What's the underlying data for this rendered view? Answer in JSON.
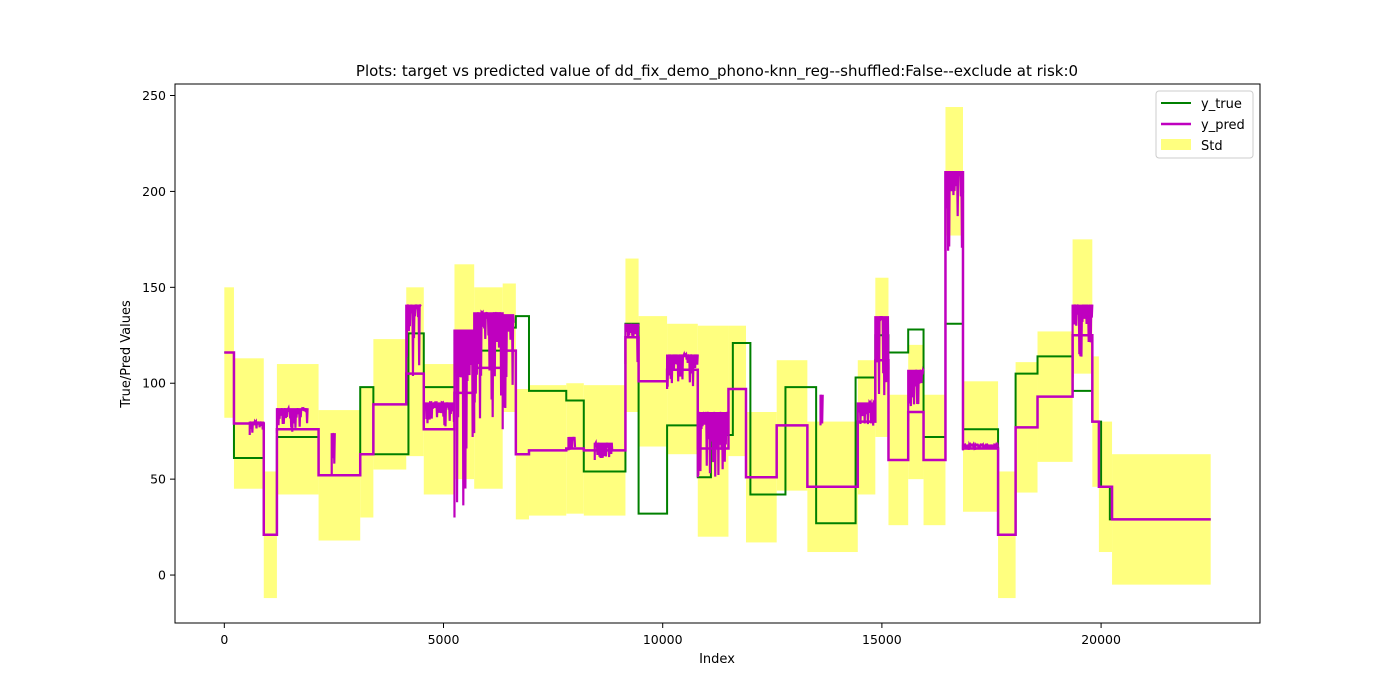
{
  "chart_data": {
    "type": "line",
    "title": "Plots: target vs predicted value of dd_fix_demo_phono-knn_reg--shuffled:False--exclude at risk:0",
    "xlabel": "Index",
    "ylabel": "True/Pred Values",
    "xlim": [
      -1125,
      23625
    ],
    "ylim": [
      -25,
      256
    ],
    "xticks": [
      0,
      5000,
      10000,
      15000,
      20000
    ],
    "yticks": [
      0,
      50,
      100,
      150,
      200,
      250
    ],
    "grid": false,
    "legend": {
      "placement": "top-right",
      "entries": [
        "y_true",
        "y_pred",
        "Std"
      ]
    },
    "colors": {
      "y_true": "#008000",
      "y_pred": "#bf00bf",
      "std": "#ffff7f"
    },
    "series": [
      {
        "name": "y_true",
        "step": [
          [
            0,
            116
          ],
          [
            220,
            61
          ],
          [
            900,
            21
          ],
          [
            1200,
            72
          ],
          [
            2150,
            52
          ],
          [
            3100,
            98
          ],
          [
            3400,
            63
          ],
          [
            4200,
            126
          ],
          [
            4550,
            98
          ],
          [
            5250,
            127
          ],
          [
            5650,
            117
          ],
          [
            6350,
            129
          ],
          [
            6650,
            135
          ],
          [
            6950,
            96
          ],
          [
            7800,
            91
          ],
          [
            8200,
            54
          ],
          [
            9150,
            131
          ],
          [
            9450,
            32
          ],
          [
            10100,
            78
          ],
          [
            10800,
            51
          ],
          [
            11100,
            73
          ],
          [
            11600,
            121
          ],
          [
            12000,
            42
          ],
          [
            12800,
            98
          ],
          [
            13500,
            27
          ],
          [
            14400,
            103
          ],
          [
            14850,
            125
          ],
          [
            15150,
            116
          ],
          [
            15600,
            128
          ],
          [
            15950,
            72
          ],
          [
            16450,
            131
          ],
          [
            16850,
            76
          ],
          [
            17650,
            21
          ],
          [
            18050,
            105
          ],
          [
            18550,
            114
          ],
          [
            19350,
            96
          ],
          [
            19800,
            80
          ],
          [
            20000,
            46
          ],
          [
            20200,
            29
          ],
          [
            22500,
            29
          ]
        ]
      },
      {
        "name": "y_pred",
        "step": [
          [
            0,
            116
          ],
          [
            220,
            79
          ],
          [
            900,
            21
          ],
          [
            1200,
            76
          ],
          [
            2150,
            52
          ],
          [
            3100,
            63
          ],
          [
            3400,
            89
          ],
          [
            4150,
            105
          ],
          [
            4550,
            76
          ],
          [
            5250,
            95
          ],
          [
            5700,
            108
          ],
          [
            6350,
            117
          ],
          [
            6650,
            63
          ],
          [
            6950,
            65
          ],
          [
            7800,
            66
          ],
          [
            8200,
            65
          ],
          [
            9150,
            124
          ],
          [
            9450,
            101
          ],
          [
            10100,
            107
          ],
          [
            10800,
            66
          ],
          [
            11500,
            97
          ],
          [
            11900,
            51
          ],
          [
            12600,
            78
          ],
          [
            13300,
            46
          ],
          [
            14450,
            80
          ],
          [
            14850,
            112
          ],
          [
            15150,
            60
          ],
          [
            15600,
            85
          ],
          [
            15950,
            60
          ],
          [
            16450,
            210
          ],
          [
            16850,
            66
          ],
          [
            17650,
            21
          ],
          [
            18050,
            77
          ],
          [
            18550,
            93
          ],
          [
            19350,
            125
          ],
          [
            19800,
            80
          ],
          [
            19950,
            46
          ],
          [
            20250,
            29
          ],
          [
            22500,
            29
          ]
        ]
      },
      {
        "name": "Std",
        "bands": [
          [
            0,
            220,
            82,
            150
          ],
          [
            220,
            900,
            45,
            113
          ],
          [
            900,
            1200,
            -12,
            54
          ],
          [
            1200,
            2150,
            42,
            110
          ],
          [
            2150,
            3100,
            18,
            86
          ],
          [
            3100,
            3400,
            30,
            98
          ],
          [
            3400,
            4150,
            55,
            123
          ],
          [
            4150,
            4550,
            62,
            150
          ],
          [
            4550,
            5250,
            42,
            110
          ],
          [
            5250,
            5700,
            50,
            162
          ],
          [
            5700,
            6350,
            45,
            150
          ],
          [
            6350,
            6650,
            85,
            152
          ],
          [
            6650,
            6950,
            29,
            97
          ],
          [
            6950,
            7800,
            31,
            99
          ],
          [
            7800,
            8200,
            32,
            100
          ],
          [
            8200,
            9150,
            31,
            99
          ],
          [
            9150,
            9450,
            85,
            165
          ],
          [
            9450,
            10100,
            67,
            135
          ],
          [
            10100,
            10800,
            63,
            131
          ],
          [
            10800,
            11500,
            20,
            130
          ],
          [
            11500,
            11900,
            62,
            130
          ],
          [
            11900,
            12600,
            17,
            85
          ],
          [
            12600,
            13300,
            44,
            112
          ],
          [
            13300,
            14450,
            12,
            80
          ],
          [
            14450,
            14850,
            42,
            112
          ],
          [
            14850,
            15150,
            72,
            155
          ],
          [
            15150,
            15600,
            26,
            94
          ],
          [
            15600,
            15950,
            50,
            120
          ],
          [
            15950,
            16450,
            26,
            94
          ],
          [
            16450,
            16850,
            177,
            244
          ],
          [
            16850,
            17650,
            33,
            101
          ],
          [
            17650,
            18050,
            -12,
            54
          ],
          [
            18050,
            18550,
            43,
            111
          ],
          [
            18550,
            19350,
            59,
            127
          ],
          [
            19350,
            19800,
            105,
            175
          ],
          [
            19800,
            19950,
            46,
            114
          ],
          [
            19950,
            20250,
            12,
            80
          ],
          [
            20250,
            22500,
            -5,
            63
          ]
        ]
      }
    ],
    "noise_regions": [
      {
        "x0": 580,
        "x1": 900,
        "lo": 73,
        "hi": 80
      },
      {
        "x0": 1200,
        "x1": 1900,
        "lo": 74,
        "hi": 87
      },
      {
        "x0": 2450,
        "x1": 2520,
        "lo": 52,
        "hi": 74
      },
      {
        "x0": 4150,
        "x1": 4480,
        "lo": 98,
        "hi": 141
      },
      {
        "x0": 4550,
        "x1": 5250,
        "lo": 76,
        "hi": 90
      },
      {
        "x0": 5250,
        "x1": 5700,
        "lo": 30,
        "hi": 128
      },
      {
        "x0": 5700,
        "x1": 6350,
        "lo": 74,
        "hi": 137
      },
      {
        "x0": 6350,
        "x1": 6600,
        "lo": 76,
        "hi": 136
      },
      {
        "x0": 7850,
        "x1": 8000,
        "lo": 65,
        "hi": 72
      },
      {
        "x0": 8450,
        "x1": 8850,
        "lo": 60,
        "hi": 69
      },
      {
        "x0": 9150,
        "x1": 9450,
        "lo": 110,
        "hi": 131
      },
      {
        "x0": 10100,
        "x1": 10800,
        "lo": 97,
        "hi": 115
      },
      {
        "x0": 10800,
        "x1": 11500,
        "lo": 51,
        "hi": 85
      },
      {
        "x0": 13600,
        "x1": 13650,
        "lo": 78,
        "hi": 94
      },
      {
        "x0": 14450,
        "x1": 14850,
        "lo": 76,
        "hi": 90
      },
      {
        "x0": 14850,
        "x1": 15150,
        "lo": 88,
        "hi": 135
      },
      {
        "x0": 15600,
        "x1": 15950,
        "lo": 80,
        "hi": 107
      },
      {
        "x0": 16450,
        "x1": 16850,
        "lo": 169,
        "hi": 210
      },
      {
        "x0": 16850,
        "x1": 17650,
        "lo": 65,
        "hi": 68
      },
      {
        "x0": 19350,
        "x1": 19800,
        "lo": 103,
        "hi": 141
      }
    ]
  }
}
